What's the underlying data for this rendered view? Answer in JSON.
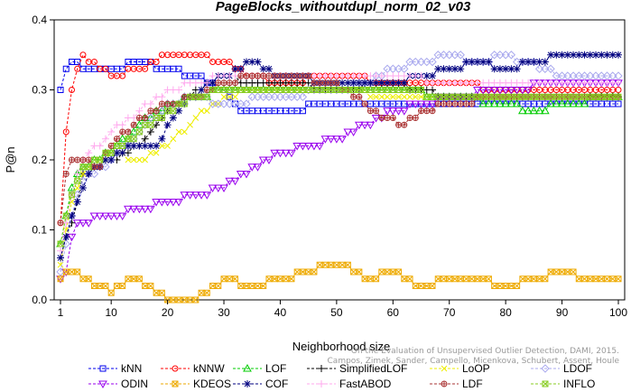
{
  "chart_data": {
    "type": "line",
    "title": "PageBlocks_withoutdupl_norm_02_v03",
    "xlabel": "Neighborhood size",
    "ylabel": "P@n",
    "xlim": [
      1,
      100
    ],
    "ylim": [
      0,
      0.4
    ],
    "x_ticks": [
      1,
      10,
      20,
      30,
      40,
      50,
      60,
      70,
      80,
      90,
      100
    ],
    "y_ticks": [
      0.0,
      0.1,
      0.2,
      0.3,
      0.4
    ],
    "x_tick_labels": [
      "1",
      "10",
      "20",
      "30",
      "40",
      "50",
      "60",
      "70",
      "80",
      "90",
      "100"
    ],
    "y_tick_labels": [
      "0.0",
      "0.1",
      "0.2",
      "0.3",
      "0.4"
    ],
    "grid": false,
    "legend_position": "bottom",
    "credit_lines": [
      "Campos, Zimek, Sander, Campello, Micenkova, Schubert, Assent, Houle",
      "On the Evaluation of Unsupervised Outlier Detection, DAMI, 2015."
    ],
    "series": [
      {
        "name": "kNN",
        "color": "#0000ee",
        "marker": "square",
        "anchors": [
          [
            1,
            0.3
          ],
          [
            2,
            0.33
          ],
          [
            3,
            0.34
          ],
          [
            5,
            0.33
          ],
          [
            10,
            0.33
          ],
          [
            15,
            0.34
          ],
          [
            20,
            0.33
          ],
          [
            25,
            0.32
          ],
          [
            30,
            0.3
          ],
          [
            33,
            0.27
          ],
          [
            40,
            0.27
          ],
          [
            50,
            0.28
          ],
          [
            60,
            0.28
          ],
          [
            70,
            0.28
          ],
          [
            80,
            0.28
          ],
          [
            90,
            0.28
          ],
          [
            100,
            0.28
          ]
        ]
      },
      {
        "name": "kNNW",
        "color": "#ff0000",
        "marker": "circle",
        "anchors": [
          [
            1,
            0.11
          ],
          [
            2,
            0.24
          ],
          [
            3,
            0.3
          ],
          [
            4,
            0.33
          ],
          [
            5,
            0.35
          ],
          [
            8,
            0.33
          ],
          [
            10,
            0.32
          ],
          [
            15,
            0.33
          ],
          [
            20,
            0.35
          ],
          [
            25,
            0.35
          ],
          [
            30,
            0.34
          ],
          [
            35,
            0.32
          ],
          [
            40,
            0.31
          ],
          [
            50,
            0.32
          ],
          [
            60,
            0.31
          ],
          [
            70,
            0.31
          ],
          [
            80,
            0.3
          ],
          [
            90,
            0.3
          ],
          [
            100,
            0.3
          ]
        ]
      },
      {
        "name": "LOF",
        "color": "#00cc00",
        "marker": "triangle",
        "anchors": [
          [
            1,
            0.08
          ],
          [
            3,
            0.16
          ],
          [
            5,
            0.19
          ],
          [
            10,
            0.21
          ],
          [
            15,
            0.25
          ],
          [
            20,
            0.28
          ],
          [
            25,
            0.29
          ],
          [
            30,
            0.3
          ],
          [
            40,
            0.3
          ],
          [
            50,
            0.3
          ],
          [
            60,
            0.3
          ],
          [
            70,
            0.29
          ],
          [
            80,
            0.28
          ],
          [
            85,
            0.27
          ],
          [
            90,
            0.28
          ],
          [
            100,
            0.29
          ]
        ]
      },
      {
        "name": "SimplifiedLOF",
        "color": "#000000",
        "marker": "plus",
        "anchors": [
          [
            1,
            0.06
          ],
          [
            3,
            0.11
          ],
          [
            5,
            0.18
          ],
          [
            10,
            0.2
          ],
          [
            15,
            0.22
          ],
          [
            20,
            0.27
          ],
          [
            25,
            0.3
          ],
          [
            30,
            0.32
          ],
          [
            35,
            0.31
          ],
          [
            40,
            0.31
          ],
          [
            50,
            0.3
          ],
          [
            60,
            0.31
          ],
          [
            70,
            0.29
          ],
          [
            80,
            0.29
          ],
          [
            90,
            0.29
          ],
          [
            100,
            0.29
          ]
        ]
      },
      {
        "name": "LoOP",
        "color": "#eeee00",
        "marker": "x",
        "anchors": [
          [
            1,
            0.05
          ],
          [
            3,
            0.14
          ],
          [
            5,
            0.18
          ],
          [
            10,
            0.21
          ],
          [
            15,
            0.2
          ],
          [
            20,
            0.22
          ],
          [
            25,
            0.26
          ],
          [
            30,
            0.29
          ],
          [
            35,
            0.3
          ],
          [
            40,
            0.3
          ],
          [
            50,
            0.3
          ],
          [
            60,
            0.29
          ],
          [
            70,
            0.29
          ],
          [
            80,
            0.29
          ],
          [
            90,
            0.29
          ],
          [
            100,
            0.29
          ]
        ]
      },
      {
        "name": "LDOF",
        "color": "#aaaaee",
        "marker": "diamond",
        "anchors": [
          [
            1,
            0.04
          ],
          [
            3,
            0.12
          ],
          [
            5,
            0.17
          ],
          [
            10,
            0.2
          ],
          [
            15,
            0.24
          ],
          [
            20,
            0.28
          ],
          [
            25,
            0.29
          ],
          [
            30,
            0.28
          ],
          [
            40,
            0.29
          ],
          [
            50,
            0.3
          ],
          [
            55,
            0.31
          ],
          [
            60,
            0.33
          ],
          [
            65,
            0.34
          ],
          [
            70,
            0.35
          ],
          [
            75,
            0.34
          ],
          [
            80,
            0.35
          ],
          [
            90,
            0.32
          ],
          [
            100,
            0.32
          ]
        ]
      },
      {
        "name": "ODIN",
        "color": "#9900ee",
        "marker": "triangle-down",
        "anchors": [
          [
            1,
            0.03
          ],
          [
            2,
            0.04
          ],
          [
            3,
            0.09
          ],
          [
            4,
            0.11
          ],
          [
            10,
            0.12
          ],
          [
            15,
            0.13
          ],
          [
            20,
            0.14
          ],
          [
            25,
            0.15
          ],
          [
            30,
            0.16
          ],
          [
            35,
            0.19
          ],
          [
            40,
            0.21
          ],
          [
            45,
            0.22
          ],
          [
            50,
            0.23
          ],
          [
            55,
            0.25
          ],
          [
            60,
            0.27
          ],
          [
            65,
            0.28
          ],
          [
            70,
            0.29
          ],
          [
            80,
            0.3
          ],
          [
            90,
            0.31
          ],
          [
            100,
            0.31
          ]
        ]
      },
      {
        "name": "KDEOS",
        "color": "#eeaa00",
        "marker": "boxed-square",
        "anchors": [
          [
            1,
            0.03
          ],
          [
            3,
            0.04
          ],
          [
            5,
            0.03
          ],
          [
            8,
            0.02
          ],
          [
            10,
            0.01
          ],
          [
            12,
            0.02
          ],
          [
            14,
            0.03
          ],
          [
            16,
            0.02
          ],
          [
            18,
            0.01
          ],
          [
            20,
            0.0
          ],
          [
            25,
            0.0
          ],
          [
            27,
            0.01
          ],
          [
            30,
            0.03
          ],
          [
            35,
            0.02
          ],
          [
            40,
            0.03
          ],
          [
            45,
            0.04
          ],
          [
            48,
            0.05
          ],
          [
            52,
            0.05
          ],
          [
            55,
            0.03
          ],
          [
            60,
            0.04
          ],
          [
            65,
            0.02
          ],
          [
            70,
            0.03
          ],
          [
            75,
            0.03
          ],
          [
            80,
            0.02
          ],
          [
            85,
            0.03
          ],
          [
            90,
            0.04
          ],
          [
            95,
            0.03
          ],
          [
            100,
            0.03
          ]
        ]
      },
      {
        "name": "COF",
        "color": "#000080",
        "marker": "star",
        "anchors": [
          [
            1,
            0.06
          ],
          [
            2,
            0.09
          ],
          [
            4,
            0.14
          ],
          [
            6,
            0.18
          ],
          [
            10,
            0.2
          ],
          [
            14,
            0.22
          ],
          [
            18,
            0.22
          ],
          [
            22,
            0.27
          ],
          [
            26,
            0.3
          ],
          [
            30,
            0.32
          ],
          [
            35,
            0.34
          ],
          [
            40,
            0.32
          ],
          [
            50,
            0.31
          ],
          [
            60,
            0.31
          ],
          [
            65,
            0.32
          ],
          [
            70,
            0.33
          ],
          [
            75,
            0.34
          ],
          [
            80,
            0.33
          ],
          [
            85,
            0.34
          ],
          [
            90,
            0.35
          ],
          [
            95,
            0.35
          ],
          [
            100,
            0.35
          ]
        ]
      },
      {
        "name": "FastABOD",
        "color": "#ffaaee",
        "marker": "plus",
        "anchors": [
          [
            1,
            0.07
          ],
          [
            3,
            0.15
          ],
          [
            5,
            0.2
          ],
          [
            10,
            0.24
          ],
          [
            15,
            0.27
          ],
          [
            20,
            0.3
          ],
          [
            25,
            0.31
          ],
          [
            30,
            0.32
          ],
          [
            35,
            0.32
          ],
          [
            40,
            0.32
          ],
          [
            50,
            0.32
          ],
          [
            60,
            0.32
          ],
          [
            70,
            0.31
          ],
          [
            80,
            0.31
          ],
          [
            90,
            0.31
          ],
          [
            100,
            0.31
          ]
        ]
      },
      {
        "name": "LDF",
        "color": "#aa3333",
        "marker": "circle-plus",
        "anchors": [
          [
            1,
            0.11
          ],
          [
            2,
            0.18
          ],
          [
            3,
            0.2
          ],
          [
            5,
            0.2
          ],
          [
            8,
            0.19
          ],
          [
            10,
            0.22
          ],
          [
            15,
            0.26
          ],
          [
            20,
            0.28
          ],
          [
            25,
            0.29
          ],
          [
            30,
            0.31
          ],
          [
            35,
            0.32
          ],
          [
            40,
            0.32
          ],
          [
            50,
            0.31
          ],
          [
            55,
            0.28
          ],
          [
            58,
            0.26
          ],
          [
            62,
            0.25
          ],
          [
            66,
            0.27
          ],
          [
            70,
            0.28
          ],
          [
            80,
            0.29
          ],
          [
            90,
            0.29
          ],
          [
            100,
            0.29
          ]
        ]
      },
      {
        "name": "INFLO",
        "color": "#88cc22",
        "marker": "boxed-x",
        "anchors": [
          [
            1,
            0.08
          ],
          [
            3,
            0.15
          ],
          [
            5,
            0.19
          ],
          [
            10,
            0.21
          ],
          [
            15,
            0.24
          ],
          [
            20,
            0.27
          ],
          [
            25,
            0.29
          ],
          [
            30,
            0.3
          ],
          [
            40,
            0.3
          ],
          [
            50,
            0.3
          ],
          [
            60,
            0.3
          ],
          [
            70,
            0.29
          ],
          [
            80,
            0.29
          ],
          [
            90,
            0.29
          ],
          [
            100,
            0.29
          ]
        ]
      }
    ]
  }
}
